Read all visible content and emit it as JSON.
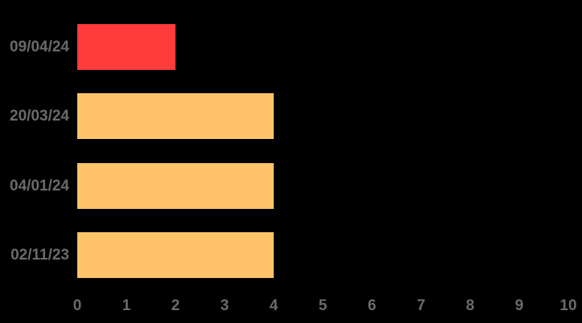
{
  "chart_data": {
    "type": "bar",
    "orientation": "horizontal",
    "categories": [
      "09/04/24",
      "20/03/24",
      "04/01/24",
      "02/11/23"
    ],
    "values": [
      2,
      4,
      4,
      4
    ],
    "bar_colors": [
      "#ff3b3b",
      "#ffc369",
      "#ffc369",
      "#ffc369"
    ],
    "xlim": [
      0,
      10
    ],
    "x_ticks": [
      "0",
      "1",
      "2",
      "3",
      "4",
      "5",
      "6",
      "7",
      "8",
      "9",
      "10"
    ],
    "grid": false,
    "legend": false,
    "background_color": "#000000",
    "label_color": "#6a6a6a"
  }
}
